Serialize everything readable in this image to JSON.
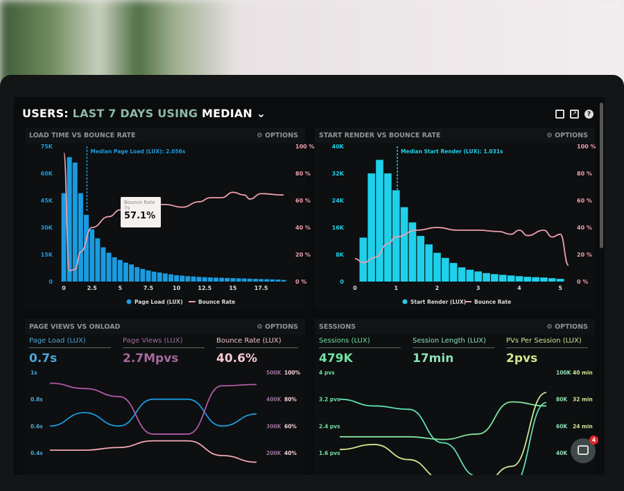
{
  "header": {
    "prefix": "USERS:",
    "range": "LAST 7 DAYS",
    "using": "USING",
    "stat": "MEDIAN",
    "icons": [
      "monitor-icon",
      "share-icon",
      "help-icon"
    ]
  },
  "options_label": "OPTIONS",
  "colors": {
    "blue": "#1a9be0",
    "cyan": "#1fd0ea",
    "pink": "#f4a9b6",
    "purple": "#b05aa8",
    "teal": "#5fe0b5",
    "lime": "#cfe890",
    "green": "#7fe6a0"
  },
  "chat": {
    "badge": "4"
  },
  "chart_data": [
    {
      "id": "load",
      "type": "bar",
      "title": "LOAD TIME VS BOUNCE RATE",
      "median_label": "Median Page Load (LUX): 2.056s",
      "median": 2.056,
      "xticks": [
        "0",
        "2.5",
        "5",
        "7.5",
        "10",
        "12.5",
        "15",
        "17.5"
      ],
      "xlim": [
        0,
        19.8
      ],
      "yticks_left": [
        "0",
        "15K",
        "30K",
        "45K",
        "60K",
        "75K"
      ],
      "ylim_left": [
        0,
        75000
      ],
      "yticks_right": [
        "0 %",
        "20 %",
        "40 %",
        "60 %",
        "80 %",
        "100 %"
      ],
      "ylim_right": [
        0,
        100
      ],
      "bar_width": 0.5,
      "bars_x": [
        0,
        0.5,
        1,
        1.5,
        2,
        2.5,
        3,
        3.5,
        4,
        4.5,
        5,
        5.5,
        6,
        6.5,
        7,
        7.5,
        8,
        8.5,
        9,
        9.5,
        10,
        10.5,
        11,
        11.5,
        12,
        12.5,
        13,
        13.5,
        14,
        14.5,
        15,
        15.5,
        16,
        16.5,
        17,
        17.5,
        18,
        18.5,
        19,
        19.5
      ],
      "bars": [
        49000,
        69000,
        66000,
        49000,
        37000,
        29000,
        24000,
        19000,
        16000,
        13500,
        12000,
        10500,
        9500,
        8000,
        7000,
        6200,
        5500,
        5000,
        4500,
        4000,
        3500,
        3300,
        3000,
        2800,
        2600,
        2400,
        2300,
        2200,
        2100,
        2000,
        1900,
        1800,
        1700,
        1600,
        1500,
        1400,
        1300,
        1200,
        1100,
        900
      ],
      "line": [
        [
          0,
          95
        ],
        [
          0.5,
          8
        ],
        [
          1,
          9
        ],
        [
          1.5,
          22
        ],
        [
          2.5,
          40
        ],
        [
          4,
          48
        ],
        [
          5,
          53
        ],
        [
          7,
          57.1
        ],
        [
          9,
          57
        ],
        [
          10.5,
          55
        ],
        [
          12,
          59
        ],
        [
          13,
          62
        ],
        [
          14,
          62
        ],
        [
          15,
          66
        ],
        [
          16,
          64
        ],
        [
          16.5,
          61
        ],
        [
          17.5,
          65
        ],
        [
          19.5,
          64
        ]
      ],
      "legend": [
        "Page Load (LUX)",
        "Bounce Rate"
      ],
      "tooltip": {
        "title": "Bounce Rate",
        "sub": "7s",
        "value": "57.1%"
      }
    },
    {
      "id": "render",
      "type": "bar",
      "title": "START RENDER VS BOUNCE RATE",
      "median_label": "Median Start Render (LUX): 1.031s",
      "median": 1.031,
      "xticks": [
        "0",
        "1",
        "2",
        "3",
        "4",
        "5"
      ],
      "xlim": [
        0,
        5.2
      ],
      "yticks_left": [
        "0",
        "8K",
        "16K",
        "24K",
        "32K",
        "40K"
      ],
      "ylim_left": [
        0,
        40000
      ],
      "yticks_right": [
        "0 %",
        "20 %",
        "40 %",
        "60 %",
        "80 %",
        "100 %"
      ],
      "ylim_right": [
        0,
        100
      ],
      "bar_width": 0.2,
      "bars_x": [
        0.2,
        0.4,
        0.6,
        0.8,
        1,
        1.2,
        1.4,
        1.6,
        1.8,
        2,
        2.2,
        2.4,
        2.6,
        2.8,
        3,
        3.2,
        3.4,
        3.6,
        3.8,
        4,
        4.2,
        4.4,
        4.6,
        4.8,
        5
      ],
      "bars": [
        13000,
        32000,
        36000,
        32000,
        27000,
        22000,
        17500,
        13500,
        11000,
        8500,
        7000,
        5500,
        4200,
        3500,
        3000,
        2500,
        2200,
        2000,
        1800,
        1600,
        1400,
        1300,
        1200,
        1000,
        800
      ],
      "line": [
        [
          0,
          17
        ],
        [
          0.2,
          14
        ],
        [
          0.5,
          18
        ],
        [
          0.8,
          28
        ],
        [
          1,
          33
        ],
        [
          1.5,
          38
        ],
        [
          2,
          40
        ],
        [
          2.5,
          38
        ],
        [
          3,
          38
        ],
        [
          3.5,
          37
        ],
        [
          3.8,
          35
        ],
        [
          4,
          38
        ],
        [
          4.2,
          34
        ],
        [
          4.6,
          38
        ],
        [
          4.8,
          33
        ],
        [
          5,
          35
        ],
        [
          5.2,
          12
        ]
      ],
      "legend": [
        "Start Render (LUX)",
        "Bounce Rate"
      ]
    },
    {
      "id": "pageviews",
      "type": "line",
      "title": "PAGE VIEWS VS ONLOAD",
      "kpis": [
        {
          "label": "Page Load (LUX)",
          "value": "0.7s"
        },
        {
          "label": "Page Views (LUX)",
          "value": "2.7Mpvs"
        },
        {
          "label": "Bounce Rate (LUX)",
          "value": "40.6%"
        }
      ],
      "yticks_left": [
        "0.4s",
        "0.6s",
        "0.8s",
        "1s"
      ],
      "ylim_left": [
        0.4,
        1.0
      ],
      "yticks_right1": [
        "200K",
        "300K",
        "400K",
        "500K"
      ],
      "ylim_right1": [
        200000,
        500000
      ],
      "yticks_right2": [
        "40%",
        "60%",
        "80%",
        "100%"
      ],
      "ylim_right2": [
        40,
        100
      ],
      "series": [
        {
          "axis": "left",
          "values": [
            0.6,
            0.7,
            0.6,
            0.8,
            0.8,
            0.6,
            0.69
          ]
        },
        {
          "axis": "right1",
          "values": [
            460000,
            440000,
            410000,
            270000,
            270000,
            450000,
            455000
          ]
        },
        {
          "axis": "right2",
          "values": [
            42,
            42,
            44,
            49,
            49,
            38,
            33
          ]
        }
      ]
    },
    {
      "id": "sessions",
      "type": "line",
      "title": "SESSIONS",
      "kpis": [
        {
          "label": "Sessions (LUX)",
          "value": "479K"
        },
        {
          "label": "Session Length (LUX)",
          "value": "17min"
        },
        {
          "label": "PVs Per Session (LUX)",
          "value": "2pvs"
        }
      ],
      "yticks_left": [
        "1.6 pvs",
        "2.4 pvs",
        "3.2 pvs",
        "4 pvs"
      ],
      "ylim_left": [
        1.6,
        4
      ],
      "yticks_right1": [
        "40K",
        "60K",
        "80K",
        "100K"
      ],
      "ylim_right1": [
        40000,
        100000
      ],
      "yticks_right2": [
        "24 min",
        "32 min",
        "40 min"
      ],
      "ylim_right2": [
        16,
        40
      ],
      "series": [
        {
          "axis": "left",
          "values": [
            3.2,
            3.0,
            2.9,
            1.9,
            0.9,
            0.6,
            3.1
          ]
        },
        {
          "axis": "right1",
          "values": [
            52000,
            52000,
            52000,
            50000,
            54000,
            78000,
            75000
          ]
        },
        {
          "axis": "right2",
          "values": [
            17,
            18.5,
            14,
            8,
            5,
            12,
            34
          ]
        }
      ]
    }
  ]
}
